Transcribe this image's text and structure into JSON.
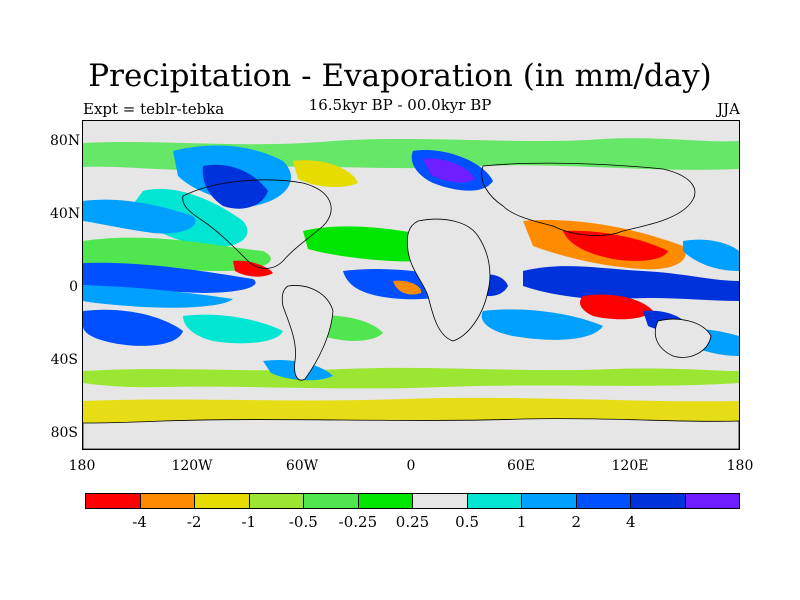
{
  "title": "Precipitation - Evaporation (in mm/day)",
  "subtitle": "16.5kyr BP - 00.0kyr BP",
  "left_label": "Expt = teblr-tebka",
  "right_label": "JJA",
  "lat_ticks": [
    "80N",
    "40N",
    "0",
    "40S",
    "80S"
  ],
  "lon_ticks": [
    "180",
    "120W",
    "60W",
    "0",
    "60E",
    "120E",
    "180"
  ],
  "colorbar": {
    "colors": [
      "#ff0000",
      "#ff8c00",
      "#e6dc00",
      "#9be632",
      "#50e650",
      "#00e600",
      "#e6e6e6",
      "#00e6d2",
      "#00a0ff",
      "#0050ff",
      "#0032dc",
      "#6e1eff"
    ],
    "labels": [
      "-4",
      "-2",
      "-1",
      "-0.5",
      "-0.25",
      "0.25",
      "0.5",
      "1",
      "2",
      "4"
    ]
  }
}
